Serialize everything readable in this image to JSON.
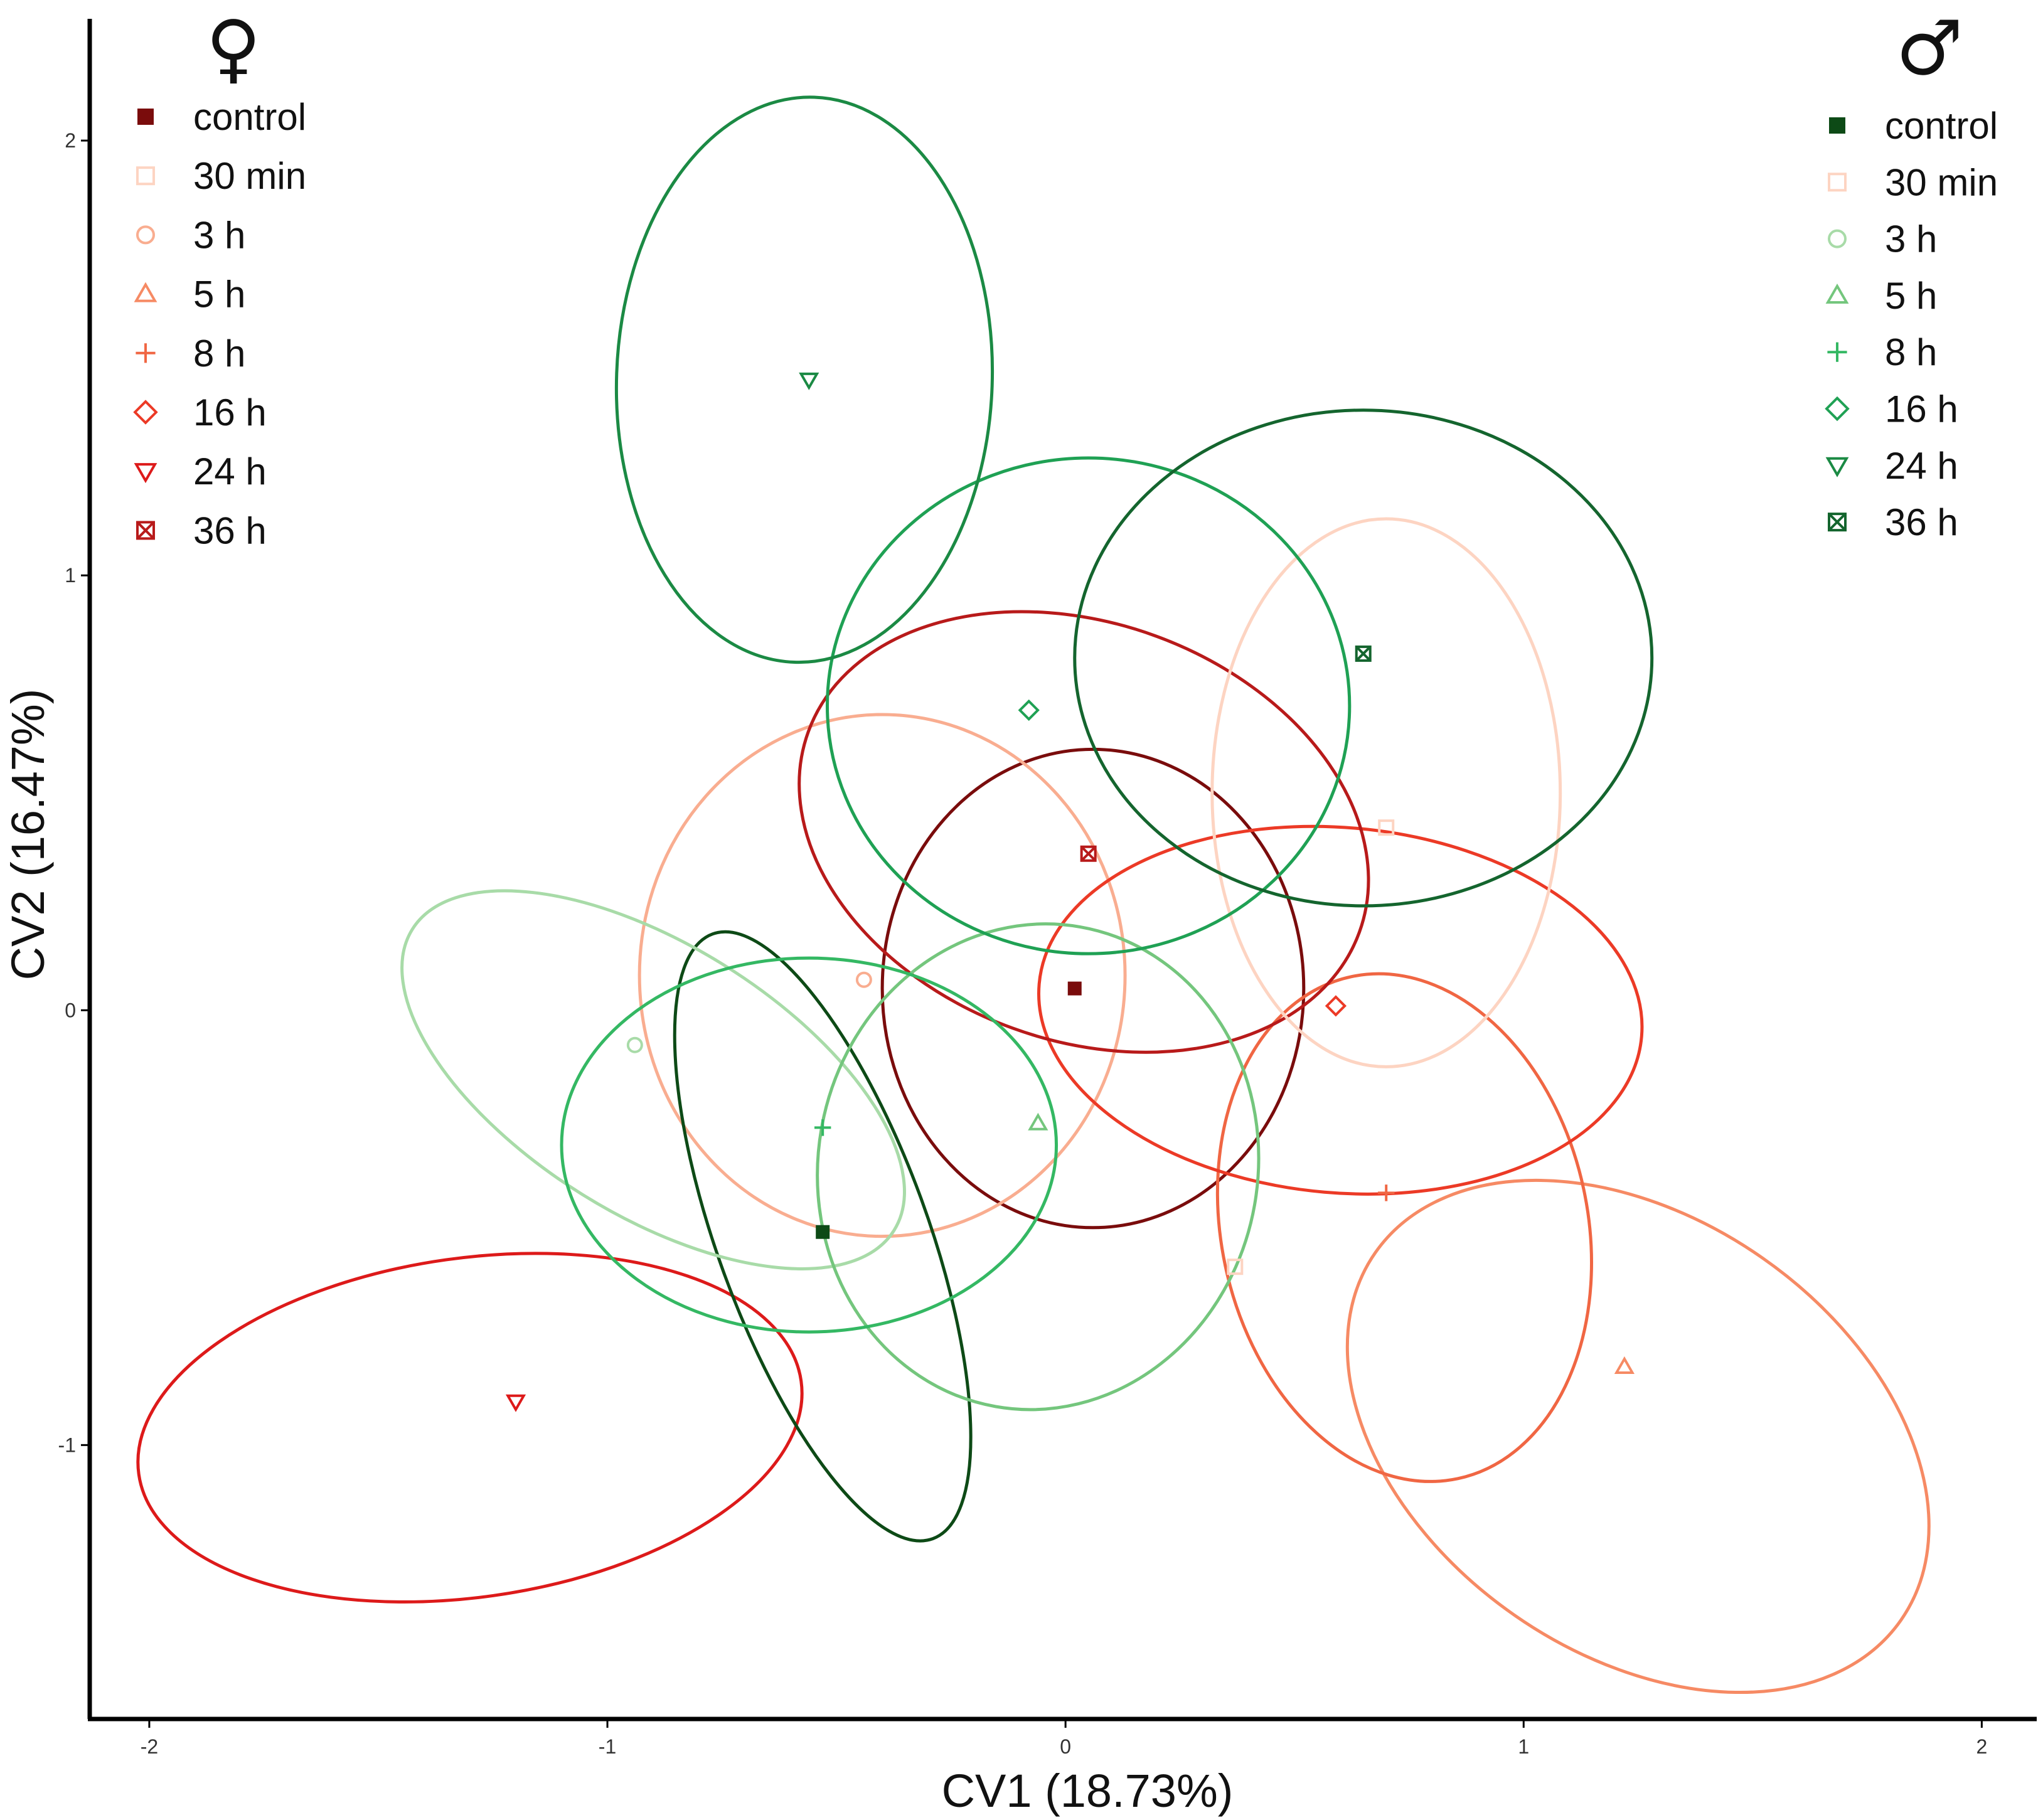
{
  "chart_data": {
    "type": "scatter",
    "xlabel": "CV1 (18.73%)",
    "ylabel": "CV2 (16.47%)",
    "xlim": [
      -2.13,
      2.12
    ],
    "ylim": [
      -1.63,
      2.28
    ],
    "x_ticks": [
      -2,
      -1,
      0,
      1,
      2
    ],
    "x_tick_labels": [
      "-2",
      "-1",
      "0",
      "1",
      "2"
    ],
    "y_ticks": [
      -1,
      0,
      1,
      2
    ],
    "y_tick_labels": [
      "-1",
      "0",
      "1",
      "2"
    ],
    "groups": [
      {
        "sex": "female",
        "symbol": "♀",
        "legend_position": "top-left",
        "series": [
          {
            "name": "control",
            "marker": "square-filled",
            "color": "#7a0c0c",
            "centroid": [
              0.02,
              0.05
            ],
            "ellipse": {
              "cx": 0.06,
              "cy": 0.05,
              "rx": 0.46,
              "ry": 0.55,
              "angle": 0
            }
          },
          {
            "name": "30 min",
            "marker": "square-open",
            "color": "#fdd4c2",
            "centroid": [
              0.37,
              -0.59
            ],
            "ellipse": null
          },
          {
            "name": "3 h",
            "marker": "circle-open",
            "color": "#f9ad90",
            "centroid": [
              -0.44,
              0.07
            ],
            "ellipse": {
              "cx": -0.4,
              "cy": 0.08,
              "rx": 0.53,
              "ry": 0.6,
              "angle": 0
            }
          },
          {
            "name": "5 h",
            "marker": "triangle-up-open",
            "color": "#f68a64",
            "centroid": [
              1.22,
              -0.82
            ],
            "ellipse": {
              "cx": 1.25,
              "cy": -0.98,
              "rx": 0.7,
              "ry": 0.5,
              "angle": -35
            }
          },
          {
            "name": "8 h",
            "marker": "plus",
            "color": "#f06643",
            "centroid": [
              0.7,
              -0.42
            ],
            "ellipse": {
              "cx": 0.74,
              "cy": -0.5,
              "rx": 0.4,
              "ry": 0.59,
              "angle": 12
            }
          },
          {
            "name": "16 h",
            "marker": "diamond-open",
            "color": "#ec3a26",
            "centroid": [
              0.59,
              0.01
            ],
            "ellipse": {
              "cx": 0.6,
              "cy": 0.0,
              "rx": 0.66,
              "ry": 0.42,
              "angle": -5
            }
          },
          {
            "name": "24 h",
            "marker": "triangle-down-open",
            "color": "#dd1a1a",
            "centroid": [
              -1.2,
              -0.9
            ],
            "ellipse": {
              "cx": -1.3,
              "cy": -0.96,
              "rx": 0.73,
              "ry": 0.39,
              "angle": 8
            }
          },
          {
            "name": "36 h",
            "marker": "square-x",
            "color": "#b81a1a",
            "centroid": [
              0.05,
              0.36
            ],
            "ellipse": {
              "cx": 0.04,
              "cy": 0.41,
              "rx": 0.64,
              "ry": 0.48,
              "angle": -20
            }
          }
        ]
      },
      {
        "sex": "male",
        "symbol": "♂",
        "legend_position": "top-right",
        "series": [
          {
            "name": "control",
            "marker": "square-filled",
            "color": "#0d4a16",
            "centroid": [
              -0.53,
              -0.51
            ],
            "ellipse": {
              "cx": -0.53,
              "cy": -0.52,
              "rx": 0.23,
              "ry": 0.74,
              "angle": 20
            }
          },
          {
            "name": "30 min",
            "marker": "square-open",
            "color": "#fdd4c2",
            "centroid": [
              0.7,
              0.42
            ],
            "ellipse": {
              "cx": 0.7,
              "cy": 0.5,
              "rx": 0.38,
              "ry": 0.63,
              "angle": 0
            }
          },
          {
            "name": "3 h",
            "marker": "circle-open",
            "color": "#a8dba8",
            "centroid": [
              -0.94,
              -0.08
            ],
            "ellipse": {
              "cx": -0.9,
              "cy": -0.16,
              "rx": 0.62,
              "ry": 0.31,
              "angle": -32
            }
          },
          {
            "name": "5 h",
            "marker": "triangle-up-open",
            "color": "#74c67d",
            "centroid": [
              -0.06,
              -0.26
            ],
            "ellipse": {
              "cx": -0.06,
              "cy": -0.36,
              "rx": 0.48,
              "ry": 0.56,
              "angle": -10
            }
          },
          {
            "name": "8 h",
            "marker": "plus",
            "color": "#34b863",
            "centroid": [
              -0.53,
              -0.27
            ],
            "ellipse": {
              "cx": -0.56,
              "cy": -0.31,
              "rx": 0.54,
              "ry": 0.43,
              "angle": 0
            }
          },
          {
            "name": "16 h",
            "marker": "diamond-open",
            "color": "#1fa154",
            "centroid": [
              -0.08,
              0.69
            ],
            "ellipse": {
              "cx": 0.05,
              "cy": 0.7,
              "rx": 0.57,
              "ry": 0.57,
              "angle": 0
            }
          },
          {
            "name": "24 h",
            "marker": "triangle-down-open",
            "color": "#1b8a44",
            "centroid": [
              -0.56,
              1.45
            ],
            "ellipse": {
              "cx": -0.57,
              "cy": 1.45,
              "rx": 0.41,
              "ry": 0.65,
              "angle": -2
            }
          },
          {
            "name": "36 h",
            "marker": "square-x",
            "color": "#14652e",
            "centroid": [
              0.65,
              0.82
            ],
            "ellipse": {
              "cx": 0.65,
              "cy": 0.81,
              "rx": 0.63,
              "ry": 0.57,
              "angle": 0
            }
          }
        ]
      }
    ]
  }
}
